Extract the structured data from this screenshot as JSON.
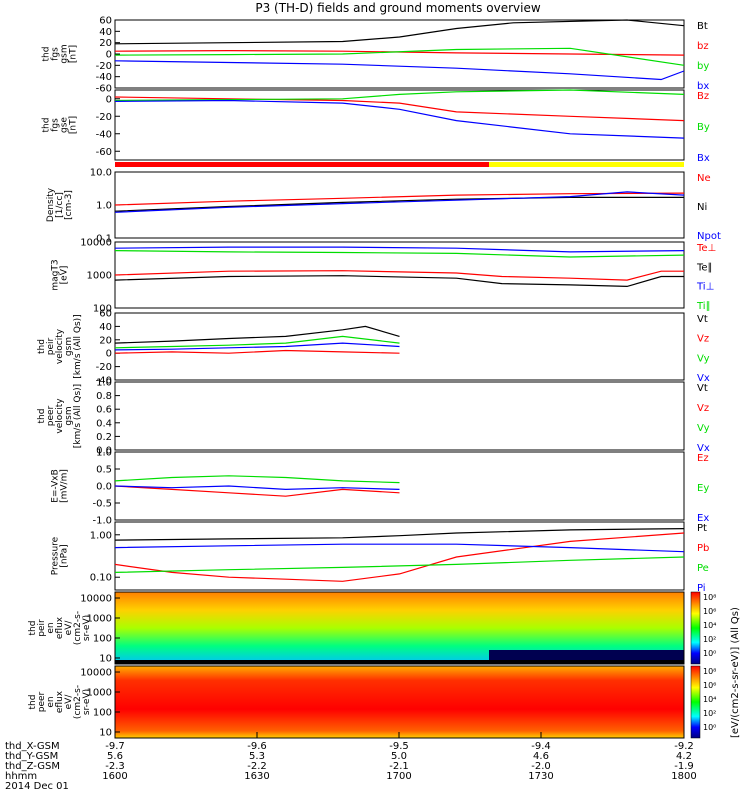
{
  "title": "P3 (TH-D) fields and ground moments overview",
  "colors": {
    "black": "#000000",
    "red": "#ff0000",
    "green": "#00dd00",
    "blue": "#0000ff",
    "yellow": "#ffff00"
  },
  "chart_data": [
    {
      "id": "fgs_gsm",
      "type": "line",
      "ylabel_lines": [
        "thd",
        "fgs",
        "gsm",
        "[nT]"
      ],
      "ylim": [
        -60,
        60
      ],
      "ticks": [
        "60",
        "40",
        "20",
        "0",
        "-20",
        "-40",
        "-60"
      ],
      "series": [
        {
          "name": "Bt",
          "color": "black",
          "points": [
            [
              -9.7,
              18
            ],
            [
              -9.6,
              20
            ],
            [
              -9.5,
              22
            ],
            [
              -9.45,
              30
            ],
            [
              -9.4,
              45
            ],
            [
              -9.35,
              55
            ],
            [
              -9.25,
              60
            ],
            [
              -9.2,
              50
            ]
          ]
        },
        {
          "name": "bz",
          "color": "red",
          "points": [
            [
              -9.7,
              5
            ],
            [
              -9.6,
              6
            ],
            [
              -9.5,
              5
            ],
            [
              -9.4,
              2
            ],
            [
              -9.3,
              0
            ],
            [
              -9.2,
              -2
            ]
          ]
        },
        {
          "name": "by",
          "color": "green",
          "points": [
            [
              -9.7,
              -2
            ],
            [
              -9.6,
              -1
            ],
            [
              -9.5,
              0
            ],
            [
              -9.4,
              8
            ],
            [
              -9.3,
              10
            ],
            [
              -9.2,
              -20
            ]
          ]
        },
        {
          "name": "bx",
          "color": "blue",
          "points": [
            [
              -9.7,
              -12
            ],
            [
              -9.6,
              -15
            ],
            [
              -9.5,
              -18
            ],
            [
              -9.4,
              -25
            ],
            [
              -9.3,
              -35
            ],
            [
              -9.22,
              -45
            ],
            [
              -9.2,
              -30
            ]
          ]
        }
      ]
    },
    {
      "id": "fgs_gse",
      "type": "line",
      "ylabel_lines": [
        "thd",
        "fgs",
        "gse",
        "[nT]"
      ],
      "ylim": [
        -70,
        10
      ],
      "ticks": [
        "0",
        "-20",
        "-40",
        "-60"
      ],
      "series": [
        {
          "name": "Bz",
          "color": "red",
          "points": [
            [
              -9.7,
              2
            ],
            [
              -9.6,
              0
            ],
            [
              -9.5,
              -2
            ],
            [
              -9.45,
              -5
            ],
            [
              -9.4,
              -15
            ],
            [
              -9.3,
              -20
            ],
            [
              -9.2,
              -25
            ]
          ]
        },
        {
          "name": "By",
          "color": "green",
          "points": [
            [
              -9.7,
              -2
            ],
            [
              -9.6,
              -1
            ],
            [
              -9.5,
              0
            ],
            [
              -9.45,
              5
            ],
            [
              -9.4,
              8
            ],
            [
              -9.3,
              10
            ],
            [
              -9.2,
              5
            ]
          ]
        },
        {
          "name": "Bx",
          "color": "blue",
          "points": [
            [
              -9.7,
              -3
            ],
            [
              -9.6,
              -2
            ],
            [
              -9.5,
              -5
            ],
            [
              -9.45,
              -12
            ],
            [
              -9.4,
              -25
            ],
            [
              -9.3,
              -40
            ],
            [
              -9.2,
              -45
            ]
          ]
        }
      ]
    },
    {
      "id": "density",
      "type": "line",
      "scale": "log",
      "ylabel_lines": [
        "Density",
        "[1/cc]",
        "[cm-3]"
      ],
      "ylim": [
        0.1,
        10
      ],
      "ticks": [
        "10.0",
        "1.0",
        "0.1"
      ],
      "series": [
        {
          "name": "Ne",
          "color": "red",
          "points": [
            [
              -9.7,
              1.0
            ],
            [
              -9.6,
              1.3
            ],
            [
              -9.5,
              1.6
            ],
            [
              -9.4,
              2.0
            ],
            [
              -9.3,
              2.2
            ],
            [
              -9.2,
              2.3
            ]
          ]
        },
        {
          "name": "Ni",
          "color": "black",
          "points": [
            [
              -9.7,
              0.65
            ],
            [
              -9.6,
              0.9
            ],
            [
              -9.5,
              1.2
            ],
            [
              -9.4,
              1.5
            ],
            [
              -9.3,
              1.7
            ],
            [
              -9.2,
              1.7
            ]
          ]
        },
        {
          "name": "Npot",
          "color": "blue",
          "points": [
            [
              -9.7,
              0.6
            ],
            [
              -9.6,
              0.85
            ],
            [
              -9.5,
              1.1
            ],
            [
              -9.4,
              1.4
            ],
            [
              -9.3,
              1.8
            ],
            [
              -9.25,
              2.5
            ],
            [
              -9.2,
              2.0
            ]
          ]
        }
      ]
    },
    {
      "id": "temperature",
      "type": "line",
      "scale": "log",
      "ylabel_lines": [
        "magT3",
        "[eV]"
      ],
      "ylim": [
        100,
        10000
      ],
      "ticks": [
        "10000",
        "1000",
        "100"
      ],
      "series": [
        {
          "name": "Te⊥",
          "color": "red",
          "points": [
            [
              -9.7,
              1000
            ],
            [
              -9.6,
              1300
            ],
            [
              -9.5,
              1350
            ],
            [
              -9.4,
              1150
            ],
            [
              -9.36,
              900
            ],
            [
              -9.3,
              800
            ],
            [
              -9.25,
              700
            ],
            [
              -9.22,
              1300
            ],
            [
              -9.2,
              1300
            ]
          ]
        },
        {
          "name": "Te∥",
          "color": "black",
          "points": [
            [
              -9.7,
              700
            ],
            [
              -9.6,
              900
            ],
            [
              -9.5,
              950
            ],
            [
              -9.4,
              800
            ],
            [
              -9.36,
              550
            ],
            [
              -9.3,
              500
            ],
            [
              -9.25,
              450
            ],
            [
              -9.22,
              900
            ],
            [
              -9.2,
              900
            ]
          ]
        },
        {
          "name": "Ti⊥",
          "color": "blue",
          "points": [
            [
              -9.7,
              6500
            ],
            [
              -9.6,
              7000
            ],
            [
              -9.5,
              7000
            ],
            [
              -9.4,
              6500
            ],
            [
              -9.3,
              5000
            ],
            [
              -9.2,
              5500
            ]
          ]
        },
        {
          "name": "Ti∥",
          "color": "green",
          "points": [
            [
              -9.7,
              5500
            ],
            [
              -9.6,
              5000
            ],
            [
              -9.5,
              4800
            ],
            [
              -9.4,
              4500
            ],
            [
              -9.3,
              3500
            ],
            [
              -9.2,
              4000
            ]
          ]
        }
      ]
    },
    {
      "id": "peir_velocity",
      "type": "line",
      "ylabel_lines": [
        "thd",
        "peir",
        "velocity",
        "gsm",
        "[km/s (All Qs)]"
      ],
      "ylim": [
        -40,
        60
      ],
      "ticks": [
        "60",
        "40",
        "20",
        "0",
        "-20",
        "-40"
      ],
      "series": [
        {
          "name": "Vt",
          "color": "black",
          "points": [
            [
              -9.7,
              15
            ],
            [
              -9.65,
              18
            ],
            [
              -9.6,
              22
            ],
            [
              -9.55,
              25
            ],
            [
              -9.5,
              35
            ],
            [
              -9.48,
              40
            ],
            [
              -9.45,
              25
            ]
          ]
        },
        {
          "name": "Vz",
          "color": "red",
          "points": [
            [
              -9.7,
              0
            ],
            [
              -9.65,
              2
            ],
            [
              -9.6,
              0
            ],
            [
              -9.55,
              4
            ],
            [
              -9.5,
              2
            ],
            [
              -9.45,
              0
            ]
          ]
        },
        {
          "name": "Vy",
          "color": "green",
          "points": [
            [
              -9.7,
              8
            ],
            [
              -9.65,
              10
            ],
            [
              -9.6,
              12
            ],
            [
              -9.55,
              15
            ],
            [
              -9.5,
              25
            ],
            [
              -9.45,
              15
            ]
          ]
        },
        {
          "name": "Vx",
          "color": "blue",
          "points": [
            [
              -9.7,
              5
            ],
            [
              -9.65,
              6
            ],
            [
              -9.6,
              8
            ],
            [
              -9.55,
              10
            ],
            [
              -9.5,
              15
            ],
            [
              -9.45,
              10
            ]
          ]
        }
      ]
    },
    {
      "id": "peer_velocity",
      "type": "line",
      "ylabel_lines": [
        "thd",
        "peer",
        "velocity",
        "gsm",
        "[km/s (All Qs)]"
      ],
      "ylim": [
        0,
        1
      ],
      "ticks": [
        "1.0",
        "0.8",
        "0.6",
        "0.4",
        "0.2",
        "0.0"
      ],
      "series": [
        {
          "name": "Vt",
          "color": "black",
          "points": []
        },
        {
          "name": "Vz",
          "color": "red",
          "points": []
        },
        {
          "name": "Vy",
          "color": "green",
          "points": []
        },
        {
          "name": "Vx",
          "color": "blue",
          "points": []
        }
      ]
    },
    {
      "id": "efield",
      "type": "line",
      "ylabel_lines": [
        "E=-VxB",
        "[mV/m]"
      ],
      "ylim": [
        -1,
        1
      ],
      "ticks": [
        "1.0",
        "0.5",
        "0.0",
        "-0.5",
        "-1.0"
      ],
      "series": [
        {
          "name": "Ez",
          "color": "red",
          "points": [
            [
              -9.7,
              0.0
            ],
            [
              -9.65,
              -0.1
            ],
            [
              -9.6,
              -0.2
            ],
            [
              -9.55,
              -0.3
            ],
            [
              -9.5,
              -0.1
            ],
            [
              -9.45,
              -0.2
            ]
          ]
        },
        {
          "name": "Ey",
          "color": "green",
          "points": [
            [
              -9.7,
              0.15
            ],
            [
              -9.65,
              0.25
            ],
            [
              -9.6,
              0.3
            ],
            [
              -9.55,
              0.25
            ],
            [
              -9.5,
              0.15
            ],
            [
              -9.45,
              0.1
            ]
          ]
        },
        {
          "name": "Ex",
          "color": "blue",
          "points": [
            [
              -9.7,
              0.0
            ],
            [
              -9.65,
              -0.05
            ],
            [
              -9.6,
              0.0
            ],
            [
              -9.55,
              -0.1
            ],
            [
              -9.5,
              -0.05
            ],
            [
              -9.45,
              -0.1
            ]
          ]
        }
      ]
    },
    {
      "id": "pressure",
      "type": "line",
      "scale": "log",
      "ylabel_lines": [
        "Pressure",
        "[nPa]"
      ],
      "ylim": [
        0.05,
        2
      ],
      "ticks": [
        "1.00",
        "0.10"
      ],
      "series": [
        {
          "name": "Pt",
          "color": "black",
          "points": [
            [
              -9.7,
              0.75
            ],
            [
              -9.6,
              0.8
            ],
            [
              -9.5,
              0.85
            ],
            [
              -9.45,
              0.95
            ],
            [
              -9.4,
              1.1
            ],
            [
              -9.3,
              1.3
            ],
            [
              -9.2,
              1.4
            ]
          ]
        },
        {
          "name": "Pb",
          "color": "red",
          "points": [
            [
              -9.7,
              0.2
            ],
            [
              -9.65,
              0.13
            ],
            [
              -9.6,
              0.1
            ],
            [
              -9.55,
              0.09
            ],
            [
              -9.5,
              0.08
            ],
            [
              -9.45,
              0.12
            ],
            [
              -9.4,
              0.3
            ],
            [
              -9.3,
              0.7
            ],
            [
              -9.2,
              1.1
            ]
          ]
        },
        {
          "name": "Pe",
          "color": "green",
          "points": [
            [
              -9.7,
              0.13
            ],
            [
              -9.6,
              0.15
            ],
            [
              -9.5,
              0.17
            ],
            [
              -9.4,
              0.2
            ],
            [
              -9.3,
              0.25
            ],
            [
              -9.2,
              0.3
            ]
          ]
        },
        {
          "name": "Pi",
          "color": "blue",
          "points": [
            [
              -9.7,
              0.5
            ],
            [
              -9.6,
              0.55
            ],
            [
              -9.5,
              0.6
            ],
            [
              -9.4,
              0.6
            ],
            [
              -9.3,
              0.5
            ],
            [
              -9.2,
              0.4
            ]
          ]
        }
      ]
    },
    {
      "id": "peir_eflux",
      "type": "heatmap",
      "scale": "log",
      "ylabel_lines": [
        "thd",
        "peir",
        "en",
        "eflux",
        "eV/",
        "(cm2-s-",
        "sr-eV)"
      ],
      "ylim": [
        5,
        20000
      ],
      "ticks": [
        "10000",
        "1000",
        "100",
        "10"
      ]
    },
    {
      "id": "peer_eflux",
      "type": "heatmap",
      "scale": "log",
      "ylabel_lines": [
        "thd",
        "peer",
        "en",
        "eflux",
        "eV/",
        "(cm2-s-",
        "sr-eV)"
      ],
      "ylim": [
        5,
        20000
      ],
      "ticks": [
        "10000",
        "1000",
        "100",
        "10"
      ]
    }
  ],
  "colorbar": {
    "label": "[eV/(cm2-s-sr-eV)] (All Qs)",
    "upper_ticks": [
      "10⁸",
      "10⁶",
      "10⁴",
      "10²",
      "10⁰"
    ],
    "lower_ticks": [
      "10⁸",
      "10⁶",
      "10⁴",
      "10²",
      "10⁰"
    ]
  },
  "x_axis": {
    "row_labels": [
      "thd_X-GSM",
      "thd_Y-GSM",
      "thd_Z-GSM",
      "hhmm",
      "2014 Dec 01"
    ],
    "columns": [
      [
        "-9.7",
        "5.6",
        "-2.3",
        "1600"
      ],
      [
        "-9.6",
        "5.3",
        "-2.2",
        "1630"
      ],
      [
        "-9.5",
        "5.0",
        "-2.1",
        "1700"
      ],
      [
        "-9.4",
        "4.6",
        "-2.0",
        "1730"
      ],
      [
        "-9.2",
        "4.2",
        "-1.9",
        "1800"
      ]
    ]
  }
}
